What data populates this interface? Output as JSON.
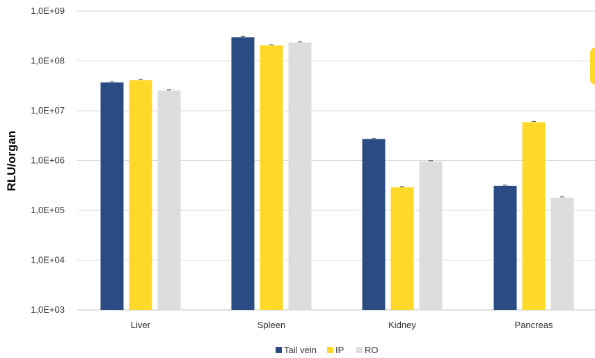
{
  "chart_data": {
    "type": "bar",
    "ylabel": "RLU/organ",
    "xlabel": "",
    "title": "",
    "y_scale": "log",
    "ylim": [
      1000,
      1000000000
    ],
    "y_ticks": [
      {
        "value": 1000,
        "label": "1,0E+03"
      },
      {
        "value": 10000,
        "label": "1,0E+04"
      },
      {
        "value": 100000,
        "label": "1,0E+05"
      },
      {
        "value": 1000000,
        "label": "1,0E+06"
      },
      {
        "value": 10000000,
        "label": "1,0E+07"
      },
      {
        "value": 100000000,
        "label": "1,0E+08"
      },
      {
        "value": 1000000000,
        "label": "1,0E+09"
      }
    ],
    "categories": [
      "Liver",
      "Spleen",
      "Kidney",
      "Pancreas"
    ],
    "series": [
      {
        "name": "Tail vein",
        "color": "#2B4C82",
        "values": [
          37000000,
          300000000,
          2700000,
          310000
        ]
      },
      {
        "name": "IP",
        "color": "#FFD92A",
        "values": [
          41000000,
          205000000,
          290000,
          5900000
        ]
      },
      {
        "name": "RO",
        "color": "#DDDDDD",
        "values": [
          25500000,
          235000000,
          960000,
          180000
        ]
      }
    ],
    "grid": true,
    "legend_position": "bottom"
  }
}
